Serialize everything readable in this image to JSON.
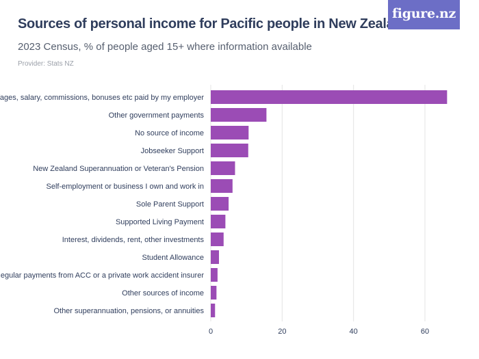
{
  "header": {
    "title": "Sources of personal income for Pacific people in New Zealand",
    "subtitle": "2023 Census, % of people aged 15+ where information available",
    "provider": "Provider: Stats NZ"
  },
  "logo": {
    "text": "figure.nz",
    "color": "#6c6ec6"
  },
  "colors": {
    "bar": "#9b4cb5",
    "grid": "#e3e3e3",
    "text": "#2f3d5c"
  },
  "chart_data": {
    "type": "bar",
    "orientation": "horizontal",
    "categories": [
      "Wages, salary, commissions, bonuses etc paid by my employer",
      "Other government payments",
      "No source of income",
      "Jobseeker Support",
      "New Zealand Superannuation or Veteran's Pension",
      "Self-employment or business I own and work in",
      "Sole Parent Support",
      "Supported Living Payment",
      "Interest, dividends, rent, other investments",
      "Student Allowance",
      "Regular payments from ACC or a private work accident insurer",
      "Other sources of income",
      "Other superannuation, pensions, or annuities"
    ],
    "values": [
      66.2,
      15.6,
      10.6,
      10.5,
      6.8,
      6.1,
      5.0,
      4.1,
      3.6,
      2.3,
      1.9,
      1.6,
      1.2
    ],
    "xlim": [
      0,
      70
    ],
    "xticks": [
      0,
      20,
      40,
      60
    ],
    "grid": true
  }
}
